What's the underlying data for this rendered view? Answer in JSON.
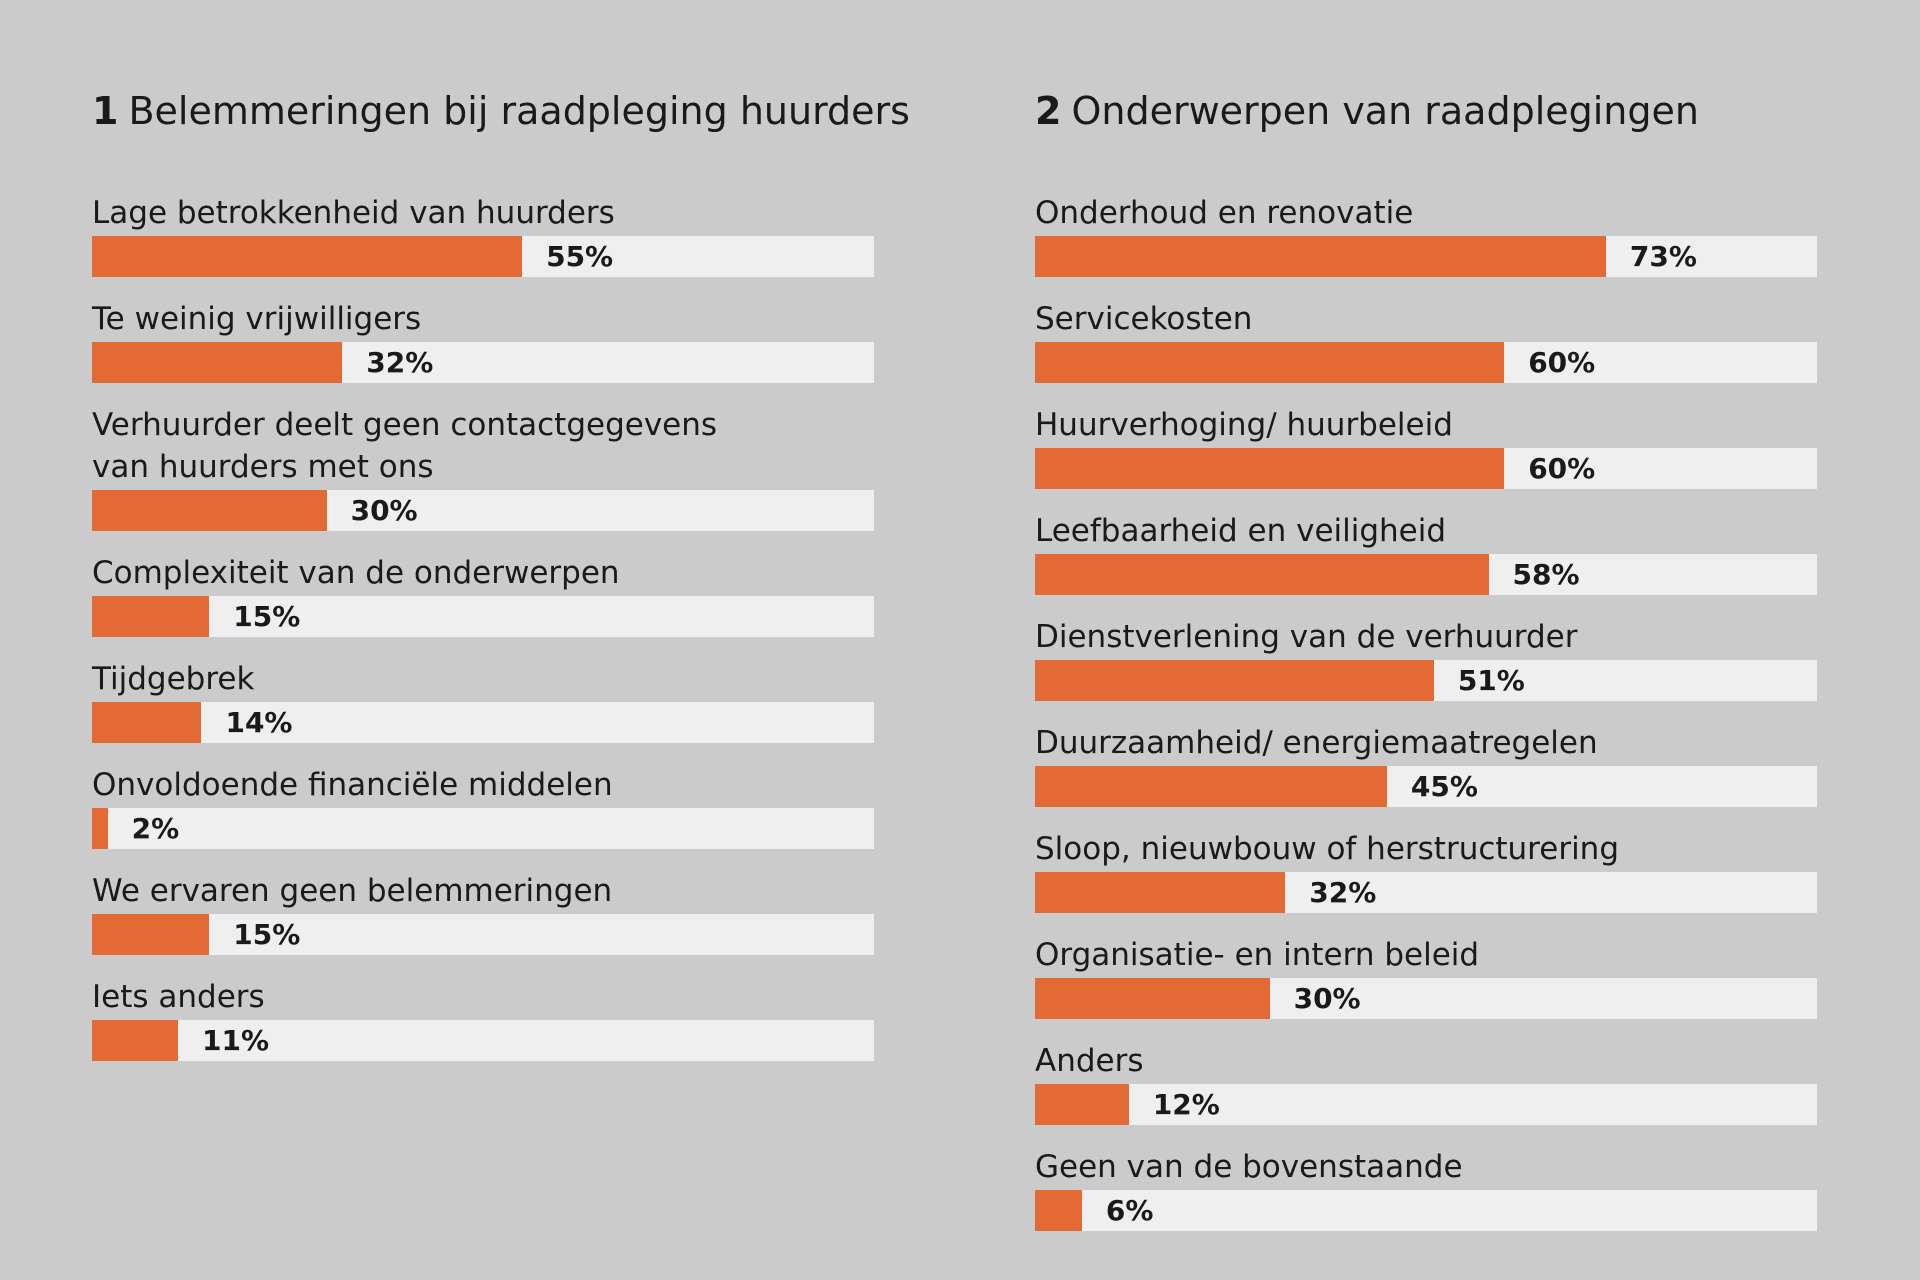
{
  "chart_data": [
    {
      "type": "bar",
      "number": "1",
      "title": "Belemmeringen bij raadpleging huurders",
      "categories": [
        "Lage betrokkenheid van huurders",
        "Te weinig vrijwilligers",
        "Verhuurder deelt geen contactgegevens van huurders met ons",
        "Complexiteit van de onderwerpen",
        "Tijdgebrek",
        "Onvoldoende financiële middelen",
        "We ervaren geen belemmeringen",
        "Iets anders"
      ],
      "values": [
        55,
        32,
        30,
        15,
        14,
        2,
        15,
        11
      ],
      "value_labels": [
        "55%",
        "32%",
        "30%",
        "15%",
        "14%",
        "2%",
        "15%",
        "11%"
      ],
      "color": "#e46a35",
      "xlim": [
        0,
        100
      ]
    },
    {
      "type": "bar",
      "number": "2",
      "title": "Onderwerpen van raadplegingen",
      "categories": [
        "Onderhoud en renovatie",
        "Servicekosten",
        "Huurverhoging/ huurbeleid",
        "Leefbaarheid en veiligheid",
        "Dienstverlening van de verhuurder",
        "Duurzaamheid/ energiemaatregelen",
        "Sloop, nieuwbouw of herstructurering",
        "Organisatie- en intern beleid",
        "Anders",
        "Geen van de bovenstaande"
      ],
      "values": [
        73,
        60,
        60,
        58,
        51,
        45,
        32,
        30,
        12,
        6
      ],
      "value_labels": [
        "73%",
        "60%",
        "60%",
        "58%",
        "51%",
        "45%",
        "32%",
        "30%",
        "12%",
        "6%"
      ],
      "color": "#e46a35",
      "xlim": [
        0,
        100
      ]
    }
  ]
}
